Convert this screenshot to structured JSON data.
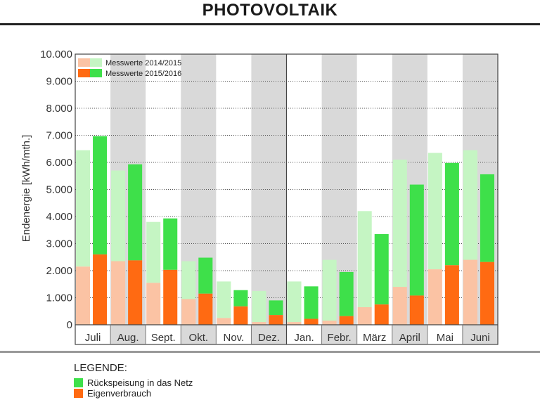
{
  "page": {
    "title": "PHOTOVOLTAIK",
    "legend_title": "LEGENDE:",
    "legend_items": [
      {
        "label": "Rückspeisung in das Netz",
        "color": "#3ee04a"
      },
      {
        "label": "Eigenverbrauch",
        "color": "#ff6a12"
      }
    ]
  },
  "chart_data": {
    "type": "bar",
    "ylabel": "Endenergie [kWh/mth.]",
    "ylim": [
      0,
      10000
    ],
    "yticks": [
      "0",
      "1.000",
      "2.000",
      "3.000",
      "4.000",
      "5.000",
      "6.000",
      "7.000",
      "8.000",
      "9.000",
      "10.000"
    ],
    "grid": true,
    "legend_placement": "top-left",
    "stacked": true,
    "categories": [
      "Juli",
      "Aug.",
      "Sept.",
      "Okt.",
      "Nov.",
      "Dez.",
      "Jan.",
      "Febr.",
      "März",
      "April",
      "Mai",
      "Juni"
    ],
    "series": [
      {
        "name": "Messwerte 2014/2015",
        "colors": {
          "eigen": "#fbc3a4",
          "rueck": "#c5f5c3"
        },
        "eigenverbrauch": [
          2150,
          2350,
          1550,
          950,
          250,
          100,
          100,
          150,
          650,
          1400,
          2050,
          2400
        ],
        "total": [
          6450,
          5700,
          3800,
          2350,
          1600,
          1250,
          1600,
          2400,
          4200,
          6100,
          6350,
          6450
        ]
      },
      {
        "name": "Messwerte 2015/2016",
        "colors": {
          "eigen": "#ff6a12",
          "rueck": "#3ee04a"
        },
        "eigenverbrauch": [
          2600,
          2380,
          2030,
          1150,
          680,
          360,
          220,
          320,
          750,
          1080,
          2200,
          2320
        ],
        "total": [
          6970,
          5930,
          3930,
          2480,
          1280,
          900,
          1420,
          1950,
          3350,
          5180,
          5980,
          5560
        ]
      }
    ]
  }
}
